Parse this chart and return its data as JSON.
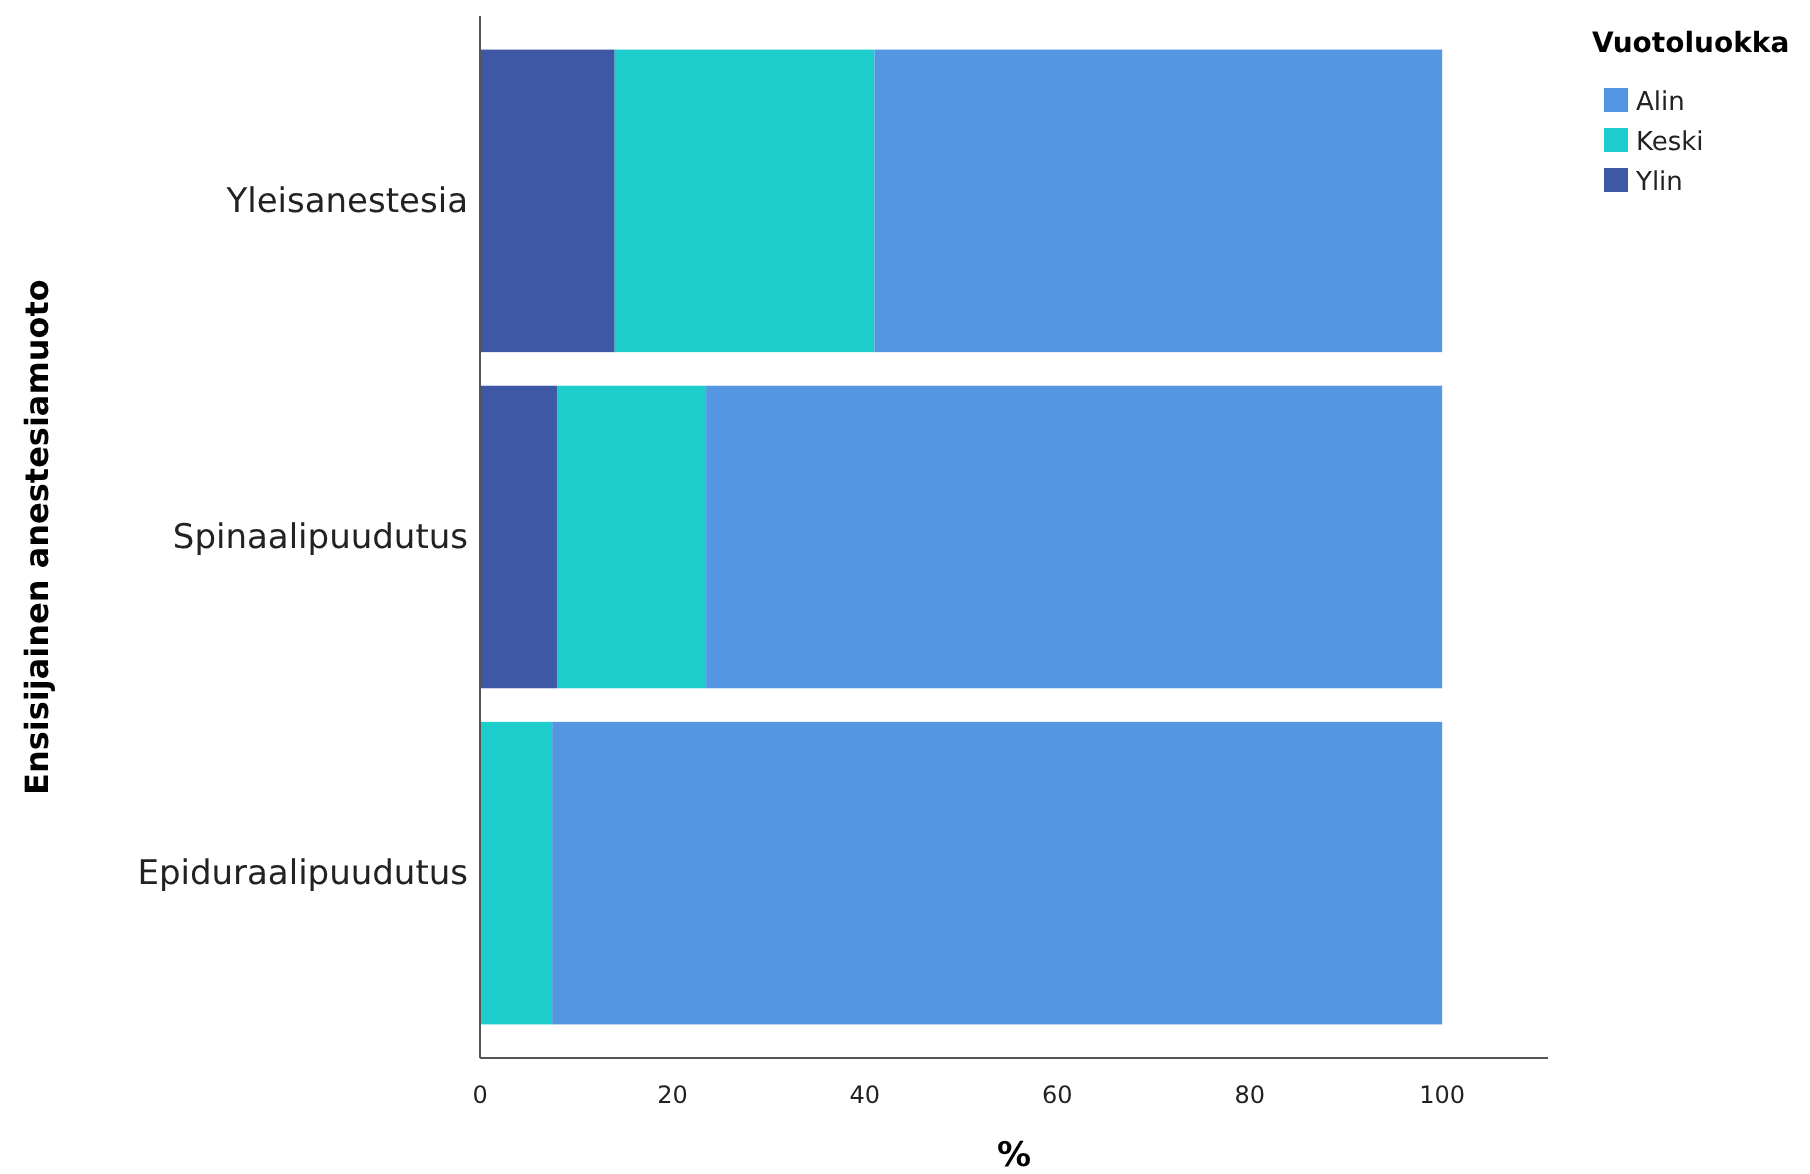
{
  "chart_data": {
    "type": "bar",
    "orientation": "horizontal",
    "stacked": true,
    "categories": [
      "Yleisanestesia",
      "Spinaalipuudutus",
      "Epiduraalipuudutus"
    ],
    "series": [
      {
        "name": "Ylin",
        "color": "#3f58a6",
        "values": [
          14,
          8,
          0
        ]
      },
      {
        "name": "Keski",
        "color": "#1dcdcc",
        "values": [
          27,
          15.5,
          7.5
        ]
      },
      {
        "name": "Alin",
        "color": "#5596e3",
        "values": [
          59,
          76.5,
          92.5
        ]
      }
    ],
    "xlim": [
      0,
      111
    ],
    "xticks": [
      0,
      20,
      40,
      60,
      80,
      100
    ],
    "xlabel": "%",
    "ylabel": "Ensisijainen anestesiamuoto",
    "legend_title": "Vuotoluokka",
    "legend": "top right",
    "grid": false
  }
}
